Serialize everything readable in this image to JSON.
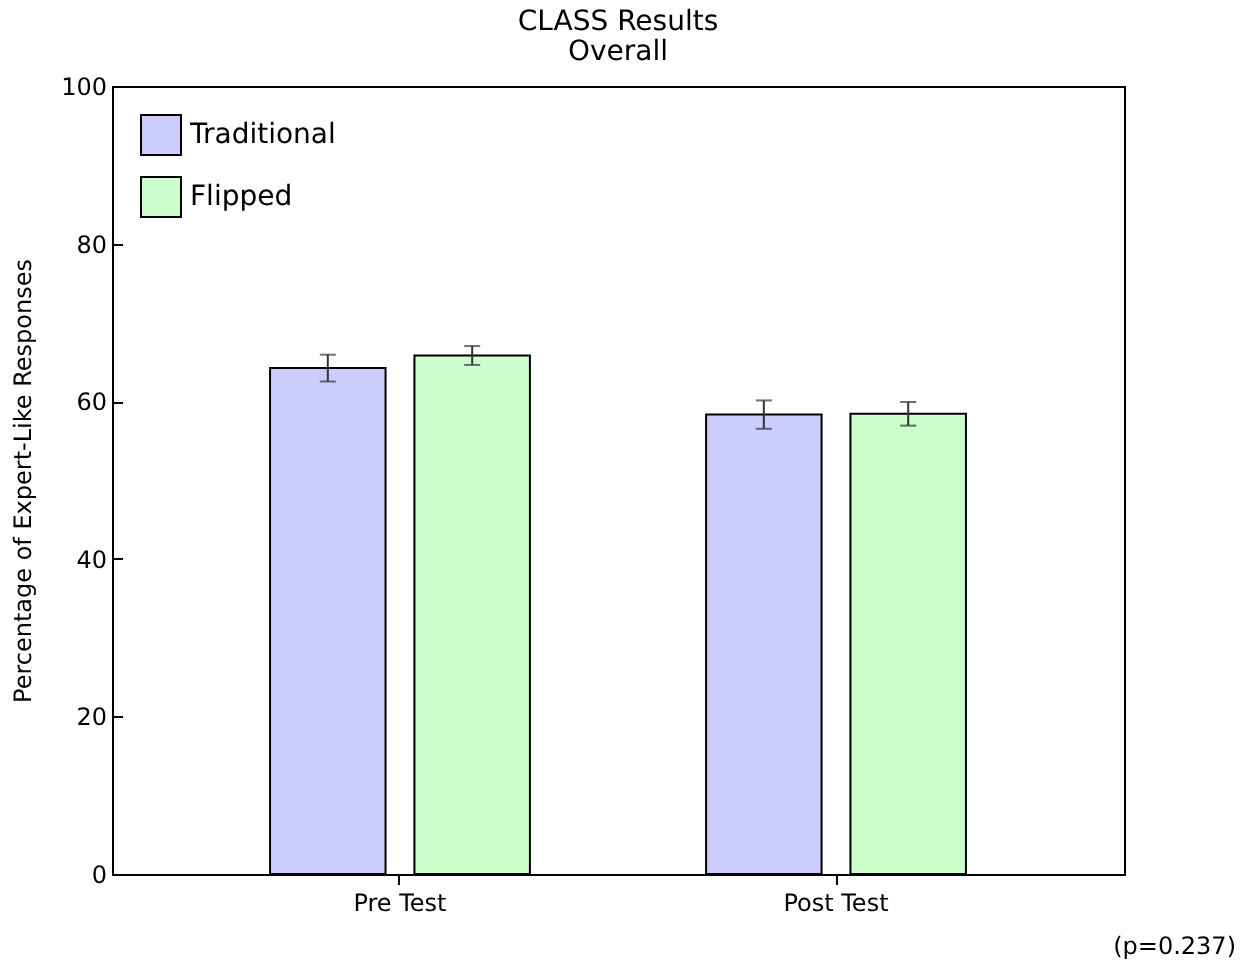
{
  "chart_data": {
    "type": "bar",
    "title": "CLASS Results",
    "subtitle": "Overall",
    "ylabel": "Percentage of Expert-Like Responses",
    "categories": [
      "Pre Test",
      "Post Test"
    ],
    "series": [
      {
        "name": "Traditional",
        "color": "#ccccff",
        "values": [
          64.2,
          58.3
        ],
        "errors": [
          1.7,
          1.8
        ]
      },
      {
        "name": "Flipped",
        "color": "#ccffcc",
        "values": [
          65.8,
          58.4
        ],
        "errors": [
          1.2,
          1.5
        ]
      }
    ],
    "ylim": [
      0,
      100
    ],
    "yticks": [
      0,
      20,
      40,
      60,
      80,
      100
    ],
    "grid": false,
    "legend": "top left",
    "annotations": [
      "(p=0.237)"
    ]
  }
}
